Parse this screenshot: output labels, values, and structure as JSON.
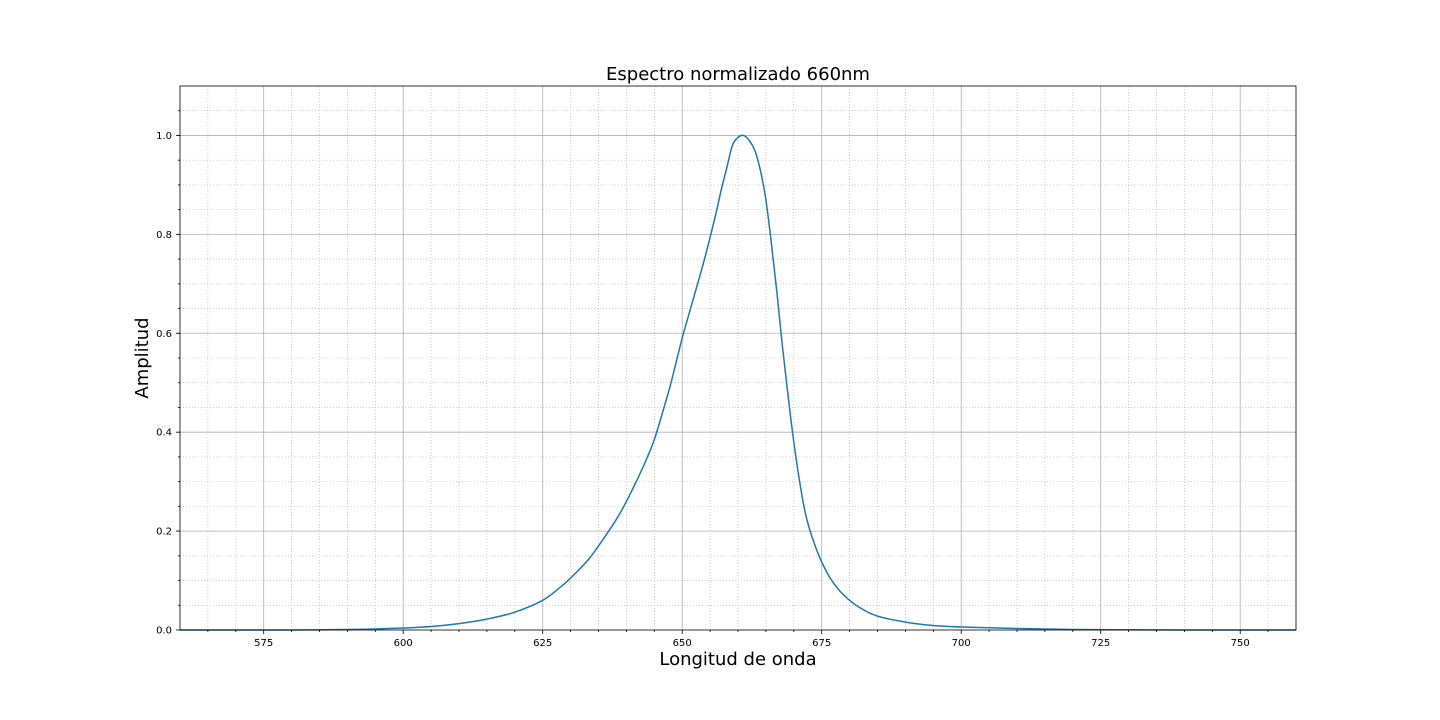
{
  "chart_data": {
    "type": "line",
    "title": "Espectro normalizado 660nm",
    "xlabel": "Longitud de onda",
    "ylabel": "Amplitud",
    "xlim": [
      560,
      760
    ],
    "ylim": [
      0,
      1.1
    ],
    "xticks": [
      575,
      600,
      625,
      650,
      675,
      700,
      725,
      750
    ],
    "yticks": [
      0.0,
      0.2,
      0.4,
      0.6,
      0.8,
      1.0
    ],
    "xtick_labels": [
      "575",
      "600",
      "625",
      "650",
      "675",
      "700",
      "725",
      "750"
    ],
    "ytick_labels": [
      "0.0",
      "0.2",
      "0.4",
      "0.6",
      "0.8",
      "1.0"
    ],
    "grid": true,
    "minor_grid": true,
    "series": [
      {
        "color": "#1f77b4",
        "x": [
          560,
          570,
          580,
          590,
          595,
          600,
          605,
          610,
          615,
          620,
          625,
          628,
          630,
          633,
          635,
          638,
          640,
          643,
          645,
          647,
          648,
          650,
          652,
          654,
          656,
          657,
          658,
          659,
          660,
          661,
          662,
          663,
          664,
          665,
          666,
          667,
          668,
          670,
          672,
          674,
          676,
          678,
          680,
          682,
          685,
          690,
          695,
          700,
          710,
          720,
          730,
          740,
          760
        ],
        "y": [
          0.0,
          0.0,
          0.0,
          0.001,
          0.002,
          0.004,
          0.007,
          0.013,
          0.022,
          0.036,
          0.06,
          0.085,
          0.105,
          0.14,
          0.17,
          0.22,
          0.26,
          0.33,
          0.385,
          0.46,
          0.5,
          0.59,
          0.67,
          0.75,
          0.84,
          0.89,
          0.935,
          0.98,
          0.996,
          1.0,
          0.99,
          0.97,
          0.93,
          0.87,
          0.78,
          0.68,
          0.57,
          0.38,
          0.24,
          0.165,
          0.115,
          0.082,
          0.06,
          0.044,
          0.028,
          0.016,
          0.009,
          0.006,
          0.003,
          0.001,
          0.0005,
          0.0,
          0.0
        ]
      }
    ]
  }
}
